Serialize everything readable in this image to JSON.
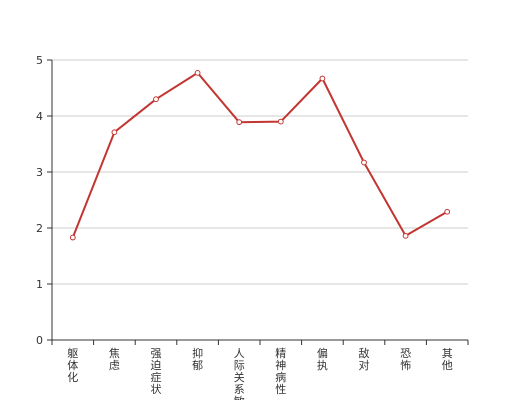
{
  "chart_data": {
    "type": "line",
    "title": "",
    "xlabel": "",
    "ylabel": "",
    "categories": [
      "躯体化",
      "焦虑",
      "强迫症状",
      "抑郁",
      "人际关系敏感",
      "精神病性",
      "偏执",
      "敌对",
      "恐怖",
      "其他"
    ],
    "series": [
      {
        "values": [
          1.83,
          3.71,
          4.3,
          4.77,
          3.89,
          3.9,
          4.67,
          3.17,
          1.86,
          2.29
        ]
      }
    ],
    "ylim": [
      0,
      5
    ],
    "yticks": [
      0,
      1,
      2,
      3,
      4,
      5
    ],
    "grid": true,
    "legend": "none",
    "colors": {
      "line": "#c23531",
      "marker_fill": "#ffffff",
      "grid": "#cccccc",
      "axis": "#333333"
    }
  }
}
